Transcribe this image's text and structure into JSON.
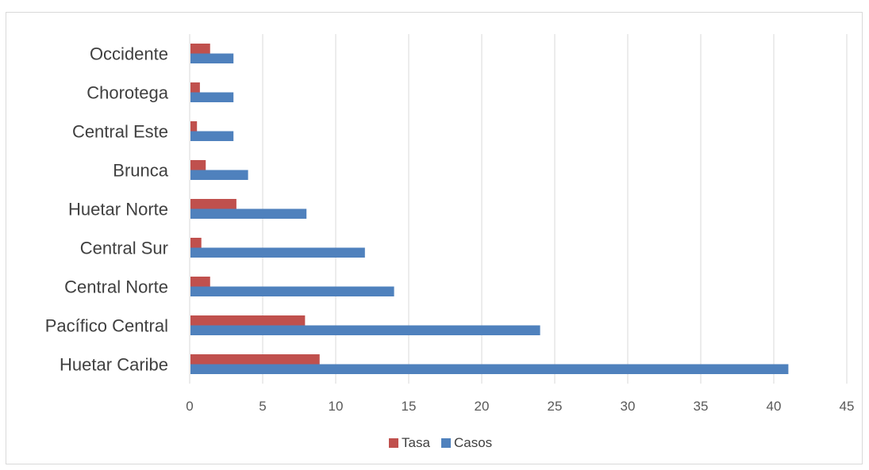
{
  "chart_data": {
    "type": "bar",
    "orientation": "horizontal",
    "categories": [
      "Huetar Caribe",
      "Pacífico Central",
      "Central Norte",
      "Central Sur",
      "Huetar Norte",
      "Brunca",
      "Central Este",
      "Chorotega",
      "Occidente"
    ],
    "series": [
      {
        "name": "Tasa",
        "color": "#C0504D",
        "values": [
          8.9,
          7.9,
          1.4,
          0.8,
          3.2,
          1.1,
          0.5,
          0.7,
          1.4
        ]
      },
      {
        "name": "Casos",
        "color": "#4F81BD",
        "values": [
          41,
          24,
          14,
          12,
          8,
          4,
          3,
          3,
          3
        ]
      }
    ],
    "xlim": [
      0,
      45
    ],
    "xticks": [
      0,
      5,
      10,
      15,
      20,
      25,
      30,
      35,
      40,
      45
    ],
    "grid": true,
    "legend_position": "bottom"
  }
}
